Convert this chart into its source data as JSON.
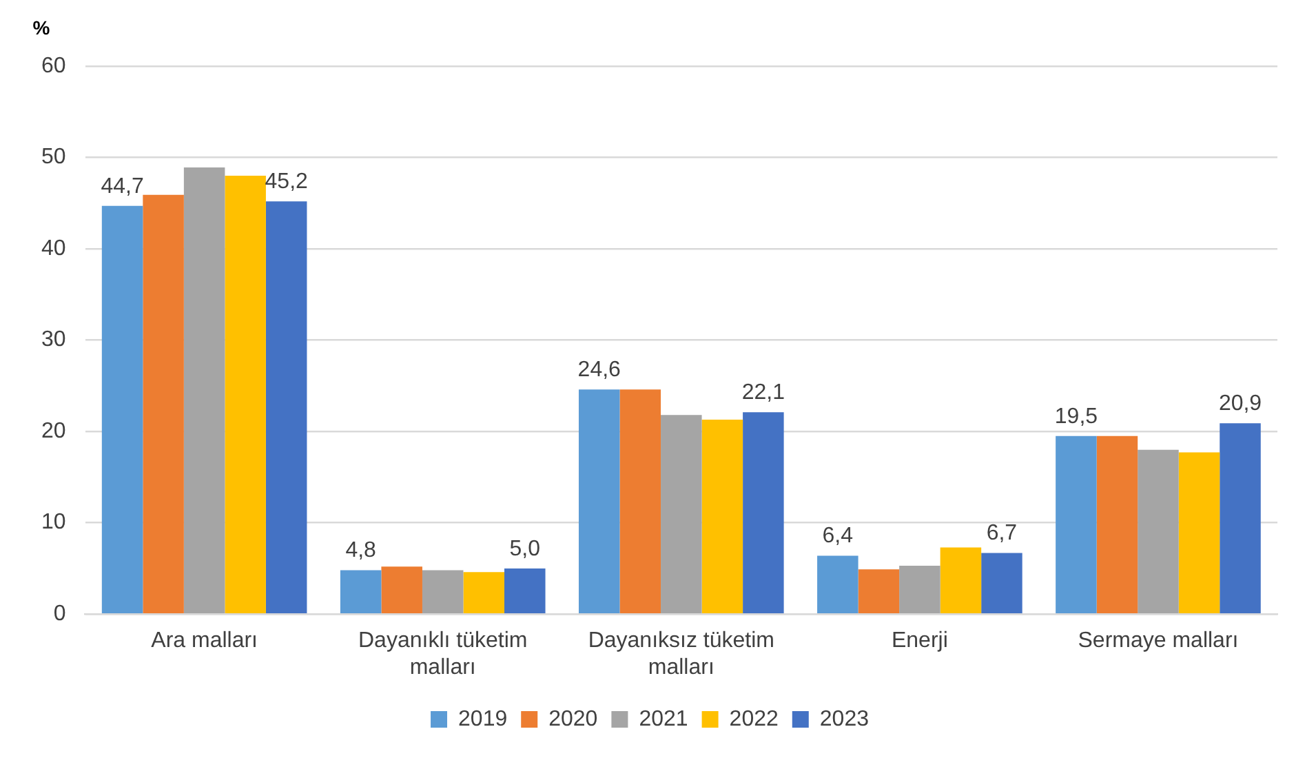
{
  "chart_data": {
    "type": "bar",
    "ylabel": "%",
    "categories": [
      "Ara malları",
      "Dayanıklı tüketim malları",
      "Dayanıksız tüketim malları",
      "Enerji",
      "Sermaye malları"
    ],
    "series": [
      {
        "name": "2019",
        "color": "#5b9bd5",
        "values": [
          44.7,
          4.8,
          24.6,
          6.4,
          19.5
        ],
        "value_labels": [
          "44,7",
          "4,8",
          "24,6",
          "6,4",
          "19,5"
        ]
      },
      {
        "name": "2020",
        "color": "#ed7d31",
        "values": [
          45.9,
          5.2,
          24.6,
          4.9,
          19.5
        ]
      },
      {
        "name": "2021",
        "color": "#a5a5a5",
        "values": [
          48.9,
          4.8,
          21.8,
          5.3,
          18.0
        ]
      },
      {
        "name": "2022",
        "color": "#ffc000",
        "values": [
          48.0,
          4.6,
          21.3,
          7.3,
          17.7
        ]
      },
      {
        "name": "2023",
        "color": "#4472c4",
        "values": [
          45.2,
          5.0,
          22.1,
          6.7,
          20.9
        ],
        "value_labels": [
          "45,2",
          "5,0",
          "22,1",
          "6,7",
          "20,9"
        ]
      }
    ],
    "ylim": [
      0,
      60
    ],
    "yticks": [
      0,
      10,
      20,
      30,
      40,
      50,
      60
    ],
    "grid": "y",
    "legend": "bottom"
  }
}
